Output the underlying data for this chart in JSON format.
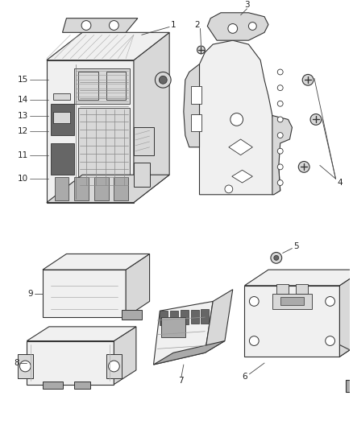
{
  "bg_color": "#ffffff",
  "ec": "#333333",
  "lc": "#444444",
  "fc_white": "#ffffff",
  "fc_light": "#f0f0f0",
  "fc_mid": "#d8d8d8",
  "fc_dark": "#aaaaaa",
  "fc_vdark": "#666666",
  "lw_main": 0.8,
  "lw_thin": 0.5,
  "lw_callout": 0.6,
  "label_fs": 7.5
}
